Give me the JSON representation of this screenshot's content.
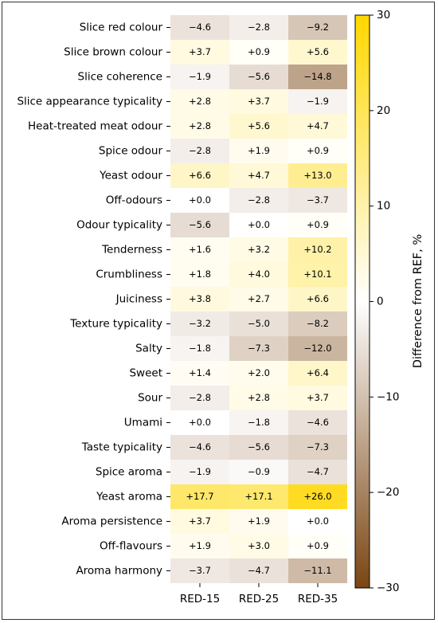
{
  "chart_data": {
    "type": "heatmap",
    "rows": [
      "Slice red colour",
      "Slice brown colour",
      "Slice coherence",
      "Slice appearance typicality",
      "Heat-treated meat odour",
      "Spice odour",
      "Yeast odour",
      "Off-odours",
      "Odour typicality",
      "Tenderness",
      "Crumbliness",
      "Juiciness",
      "Texture typicality",
      "Salty",
      "Sweet",
      "Sour",
      "Umami",
      "Taste typicality",
      "Spice aroma",
      "Yeast aroma",
      "Aroma persistence",
      "Off-flavours",
      "Aroma harmony"
    ],
    "columns": [
      "RED-15",
      "RED-25",
      "RED-35"
    ],
    "values": [
      [
        -4.6,
        -2.8,
        -9.2
      ],
      [
        3.7,
        0.9,
        5.6
      ],
      [
        -1.9,
        -5.6,
        -14.8
      ],
      [
        2.8,
        3.7,
        -1.9
      ],
      [
        2.8,
        5.6,
        4.7
      ],
      [
        -2.8,
        1.9,
        0.9
      ],
      [
        6.6,
        4.7,
        13.0
      ],
      [
        0.0,
        -2.8,
        -3.7
      ],
      [
        -5.6,
        0.0,
        0.9
      ],
      [
        1.6,
        3.2,
        10.2
      ],
      [
        1.8,
        4.0,
        10.1
      ],
      [
        3.8,
        2.7,
        6.6
      ],
      [
        -3.2,
        -5.0,
        -8.2
      ],
      [
        -1.8,
        -7.3,
        -12.0
      ],
      [
        1.4,
        2.0,
        6.4
      ],
      [
        -2.8,
        2.8,
        3.7
      ],
      [
        0.0,
        -1.8,
        -4.6
      ],
      [
        -4.6,
        -5.6,
        -7.3
      ],
      [
        -1.9,
        -0.9,
        -4.7
      ],
      [
        17.7,
        17.1,
        26.0
      ],
      [
        3.7,
        1.9,
        0.0
      ],
      [
        1.9,
        3.0,
        0.9
      ],
      [
        -3.7,
        -4.7,
        -11.1
      ]
    ],
    "labels": [
      [
        "−4.6",
        "−2.8",
        "−9.2"
      ],
      [
        "+3.7",
        "+0.9",
        "+5.6"
      ],
      [
        "−1.9",
        "−5.6",
        "−14.8"
      ],
      [
        "+2.8",
        "+3.7",
        "−1.9"
      ],
      [
        "+2.8",
        "+5.6",
        "+4.7"
      ],
      [
        "−2.8",
        "+1.9",
        "+0.9"
      ],
      [
        "+6.6",
        "+4.7",
        "+13.0"
      ],
      [
        "+0.0",
        "−2.8",
        "−3.7"
      ],
      [
        "−5.6",
        "+0.0",
        "+0.9"
      ],
      [
        "+1.6",
        "+3.2",
        "+10.2"
      ],
      [
        "+1.8",
        "+4.0",
        "+10.1"
      ],
      [
        "+3.8",
        "+2.7",
        "+6.6"
      ],
      [
        "−3.2",
        "−5.0",
        "−8.2"
      ],
      [
        "−1.8",
        "−7.3",
        "−12.0"
      ],
      [
        "+1.4",
        "+2.0",
        "+6.4"
      ],
      [
        "−2.8",
        "+2.8",
        "+3.7"
      ],
      [
        "+0.0",
        "−1.8",
        "−4.6"
      ],
      [
        "−4.6",
        "−5.6",
        "−7.3"
      ],
      [
        "−1.9",
        "−0.9",
        "−4.7"
      ],
      [
        "+17.7",
        "+17.1",
        "+26.0"
      ],
      [
        "+3.7",
        "+1.9",
        "+0.0"
      ],
      [
        "+1.9",
        "+3.0",
        "+0.9"
      ],
      [
        "−3.7",
        "−4.7",
        "−11.1"
      ]
    ],
    "colorbar": {
      "label": "Difference from REF, %",
      "range": [
        -30,
        30
      ],
      "ticks": [
        30,
        20,
        10,
        0,
        -10,
        -20,
        -30
      ],
      "tick_labels": [
        "30",
        "20",
        "10",
        "0",
        "−10",
        "−20",
        "−30"
      ],
      "colors": {
        "negative": "#7a4512",
        "zero": "#ffffff",
        "positive": "#ffd700"
      }
    }
  }
}
